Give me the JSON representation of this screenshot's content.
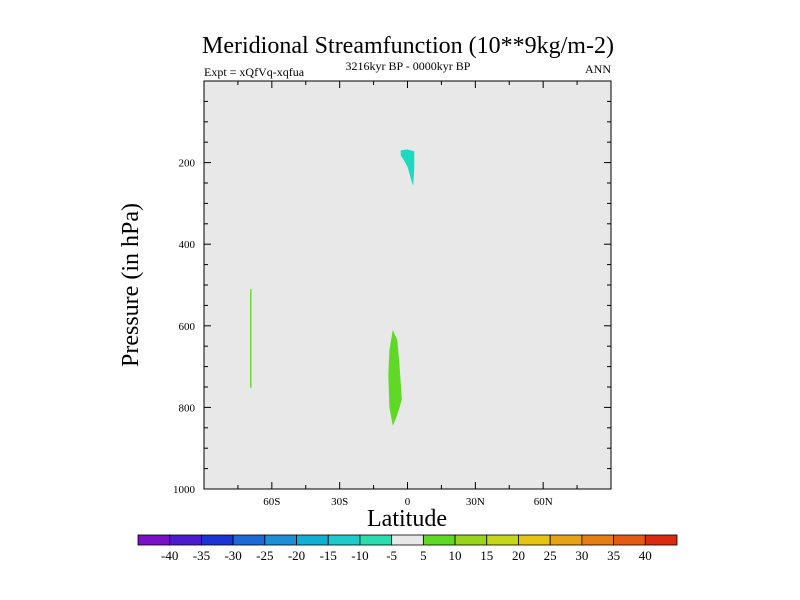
{
  "chart_data": {
    "type": "contour",
    "title": "Meridional Streamfunction (10**9kg/m-2)",
    "left_label": "Expt = xQfVq-xqfua",
    "center_label": "3216kyr BP - 0000kyr BP",
    "right_label": "ANN",
    "xlabel": "Latitude",
    "ylabel": "Pressure (in hPa)",
    "xlim": [
      -90,
      90
    ],
    "ylim": [
      1000,
      0
    ],
    "x_ticks": [
      {
        "value": -60,
        "label": "60S"
      },
      {
        "value": -30,
        "label": "30S"
      },
      {
        "value": 0,
        "label": "0"
      },
      {
        "value": 30,
        "label": "30N"
      },
      {
        "value": 60,
        "label": "60N"
      }
    ],
    "y_ticks": [
      {
        "value": 200,
        "label": "200"
      },
      {
        "value": 400,
        "label": "400"
      },
      {
        "value": 600,
        "label": "600"
      },
      {
        "value": 800,
        "label": "800"
      },
      {
        "value": 1000,
        "label": "1000"
      }
    ],
    "background_color": "#e8e8e8",
    "regions": [
      {
        "name": "upper-negative-cell",
        "range": "-10 to -5",
        "color": "#1ed9c2",
        "points": [
          [
            -3,
            170
          ],
          [
            0,
            168
          ],
          [
            3,
            172
          ],
          [
            3,
            210
          ],
          [
            2.5,
            258
          ],
          [
            1.5,
            240
          ],
          [
            0,
            210
          ],
          [
            -1.5,
            195
          ],
          [
            -3,
            182
          ]
        ]
      },
      {
        "name": "southern-positive-strip",
        "range": "5 to 10",
        "color": "#5fd924",
        "points": [
          [
            -69.6,
            510
          ],
          [
            -69,
            510
          ],
          [
            -69,
            752
          ],
          [
            -69.6,
            752
          ]
        ]
      },
      {
        "name": "equatorial-positive-cell",
        "range": "5 to 10",
        "color": "#5fd924",
        "points": [
          [
            -6.5,
            610
          ],
          [
            -4.5,
            635
          ],
          [
            -3.5,
            700
          ],
          [
            -2.5,
            780
          ],
          [
            -3.5,
            800
          ],
          [
            -5,
            825
          ],
          [
            -6.5,
            845
          ],
          [
            -8,
            800
          ],
          [
            -8.5,
            720
          ],
          [
            -8,
            660
          ]
        ]
      }
    ],
    "colorbar": {
      "levels": [
        -40,
        -35,
        -30,
        -25,
        -20,
        -15,
        -10,
        -5,
        5,
        10,
        15,
        20,
        25,
        30,
        35,
        40
      ],
      "level_labels": [
        "-40",
        "-35",
        "-30",
        "-25",
        "-20",
        "-15",
        "-10",
        "-5",
        "5",
        "10",
        "15",
        "20",
        "25",
        "30",
        "35",
        "40"
      ],
      "colors": [
        "#7a10c9",
        "#4b1ad1",
        "#1c33d6",
        "#1e69d7",
        "#1c8fd6",
        "#10b0d2",
        "#1dcbcc",
        "#2adcaf",
        "#e8e8e8",
        "#5fd924",
        "#99d41c",
        "#c6d71a",
        "#e6c414",
        "#e6a313",
        "#e57e13",
        "#e55a13",
        "#dc2a10"
      ]
    }
  }
}
